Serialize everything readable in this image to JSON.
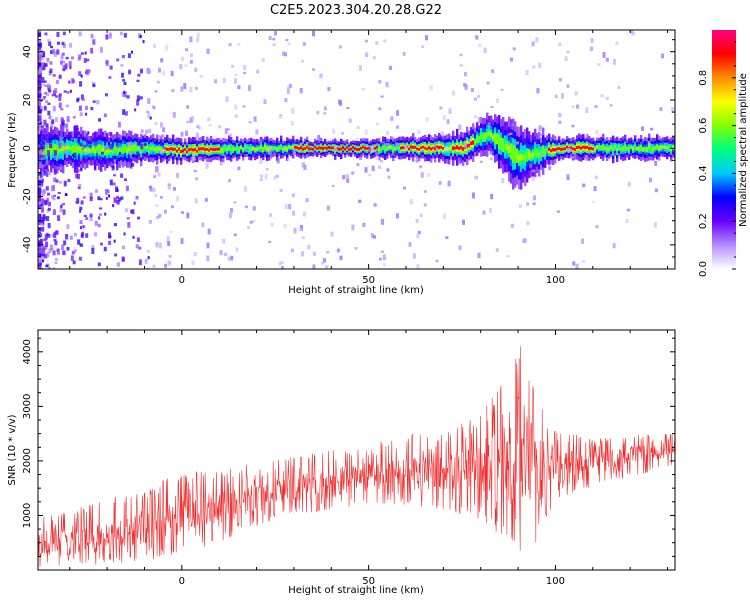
{
  "title": "C2E5.2023.304.20.28.G22",
  "chart_data": [
    {
      "type": "heatmap",
      "xlabel": "Height of straight line (km)",
      "ylabel": "Frequency (Hz)",
      "xlim": [
        -38.5,
        132
      ],
      "ylim": [
        -50,
        49
      ],
      "xticks": [
        0,
        50,
        100
      ],
      "yticks": [
        -40,
        -20,
        0,
        20,
        40
      ],
      "colorbar": {
        "label": "Normalized spectral amplitude",
        "range": [
          0,
          1
        ],
        "ticks": [
          "0.0",
          "0.2",
          "0.4",
          "0.6",
          "0.8"
        ],
        "colormap": [
          "#ffffff",
          "#b38cff",
          "#6a00ff",
          "#0000ff",
          "#00c8ff",
          "#00ff7f",
          "#7fff00",
          "#ffff00",
          "#ff8c00",
          "#ff0000",
          "#ff007f"
        ]
      },
      "ridge_center_hz": [
        {
          "x": -38,
          "y": -1
        },
        {
          "x": -30,
          "y": 0
        },
        {
          "x": -20,
          "y": -1
        },
        {
          "x": -10,
          "y": 0
        },
        {
          "x": 0,
          "y": -1
        },
        {
          "x": 20,
          "y": 0
        },
        {
          "x": 40,
          "y": 0
        },
        {
          "x": 60,
          "y": 0
        },
        {
          "x": 75,
          "y": 0
        },
        {
          "x": 82,
          "y": 6
        },
        {
          "x": 86,
          "y": 1
        },
        {
          "x": 90,
          "y": -4
        },
        {
          "x": 95,
          "y": -2
        },
        {
          "x": 100,
          "y": 0
        },
        {
          "x": 132,
          "y": 0
        }
      ],
      "ridge_halfwidth_hz": [
        {
          "x": -38,
          "y": 4
        },
        {
          "x": 0,
          "y": 2
        },
        {
          "x": 50,
          "y": 1.5
        },
        {
          "x": 80,
          "y": 3
        },
        {
          "x": 90,
          "y": 6
        },
        {
          "x": 100,
          "y": 2
        },
        {
          "x": 132,
          "y": 2
        }
      ],
      "high_amplitude_segments_km": [
        [
          -5,
          10
        ],
        [
          30,
          52
        ],
        [
          58,
          70
        ],
        [
          72,
          78
        ],
        [
          98,
          110
        ]
      ]
    },
    {
      "type": "line",
      "xlabel": "Height of straight line (km)",
      "ylabel": "SNR (10 * v/v)",
      "xlim": [
        -38.5,
        132
      ],
      "ylim": [
        0,
        4400
      ],
      "xticks": [
        0,
        50,
        100
      ],
      "yticks": [
        1000,
        2000,
        3000,
        4000
      ],
      "series_color": "#f03030",
      "envelope": [
        {
          "x": -38,
          "low": 50,
          "high": 1000,
          "mean": 450
        },
        {
          "x": -20,
          "low": 100,
          "high": 1300,
          "mean": 600
        },
        {
          "x": -10,
          "low": 150,
          "high": 1500,
          "mean": 750
        },
        {
          "x": 0,
          "low": 300,
          "high": 1800,
          "mean": 1000
        },
        {
          "x": 10,
          "low": 500,
          "high": 1800,
          "mean": 1150
        },
        {
          "x": 20,
          "low": 800,
          "high": 2000,
          "mean": 1300
        },
        {
          "x": 30,
          "low": 1000,
          "high": 2100,
          "mean": 1500
        },
        {
          "x": 40,
          "low": 1100,
          "high": 2200,
          "mean": 1600
        },
        {
          "x": 50,
          "low": 1200,
          "high": 2300,
          "mean": 1700
        },
        {
          "x": 60,
          "low": 1200,
          "high": 2500,
          "mean": 1750
        },
        {
          "x": 70,
          "low": 1100,
          "high": 2500,
          "mean": 1800
        },
        {
          "x": 80,
          "low": 900,
          "high": 2900,
          "mean": 1850
        },
        {
          "x": 85,
          "low": 600,
          "high": 3400,
          "mean": 1900
        },
        {
          "x": 90,
          "low": 300,
          "high": 4300,
          "mean": 2000
        },
        {
          "x": 95,
          "low": 500,
          "high": 3300,
          "mean": 1950
        },
        {
          "x": 100,
          "low": 1300,
          "high": 2600,
          "mean": 1950
        },
        {
          "x": 110,
          "low": 1500,
          "high": 2400,
          "mean": 2000
        },
        {
          "x": 120,
          "low": 1700,
          "high": 2500,
          "mean": 2100
        },
        {
          "x": 132,
          "low": 1900,
          "high": 2500,
          "mean": 2200
        }
      ]
    }
  ]
}
